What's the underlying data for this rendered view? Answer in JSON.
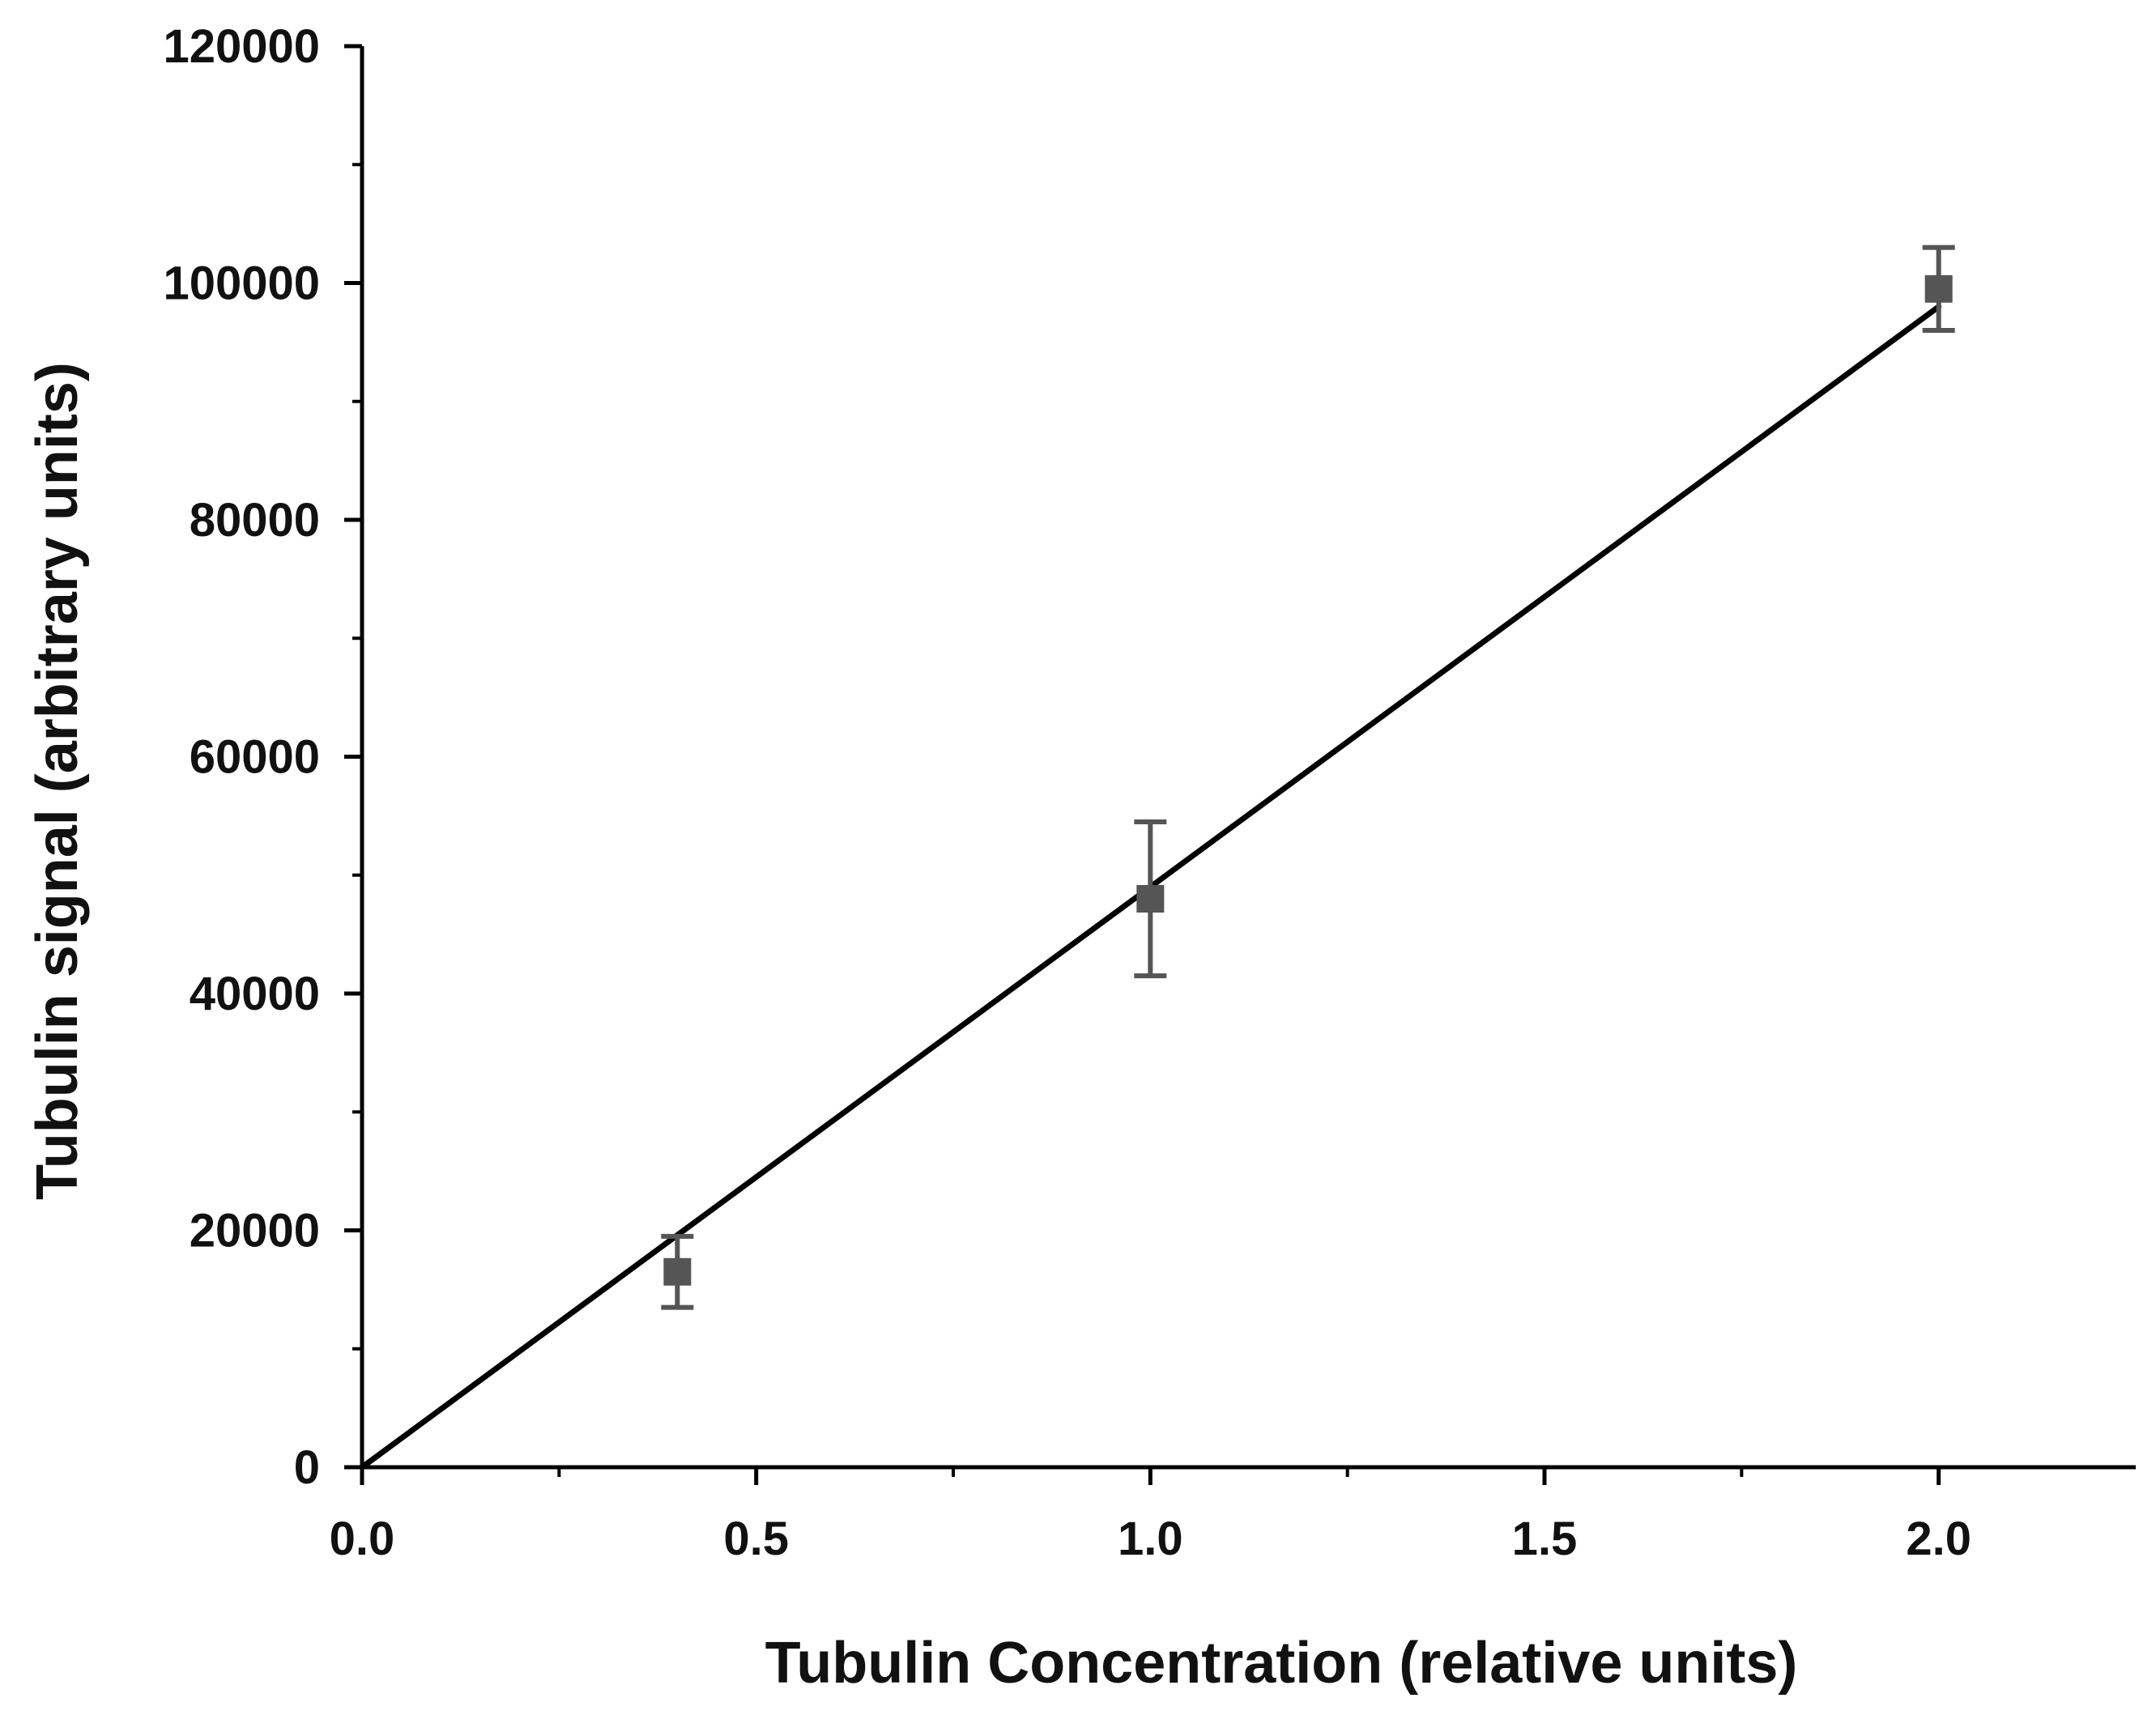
{
  "chart_data": {
    "type": "scatter",
    "title": "",
    "xlabel": "Tubulin Concentration (relative units)",
    "ylabel": "Tubulin signal (arbitrary units)",
    "xlim": [
      0.0,
      2.25
    ],
    "ylim": [
      0,
      120000
    ],
    "x_ticks": [
      0.0,
      0.5,
      1.0,
      1.5,
      2.0
    ],
    "x_tick_labels": [
      "0.0",
      "0.5",
      "1.0",
      "1.5",
      "2.0"
    ],
    "y_ticks": [
      0,
      20000,
      40000,
      60000,
      80000,
      100000,
      120000
    ],
    "y_tick_labels": [
      "0",
      "20000",
      "40000",
      "60000",
      "80000",
      "100000",
      "120000"
    ],
    "grid": false,
    "legend": "none",
    "series": [
      {
        "kind": "points_with_error",
        "x": [
          0.4,
          1.0,
          2.0
        ],
        "y": [
          16500,
          48000,
          99500
        ],
        "y_error": [
          3000,
          6500,
          3500
        ],
        "color": "#555555"
      },
      {
        "kind": "linear_fit",
        "x": [
          0.0,
          2.0
        ],
        "y": [
          0,
          98000
        ],
        "color": "#000000"
      }
    ]
  }
}
